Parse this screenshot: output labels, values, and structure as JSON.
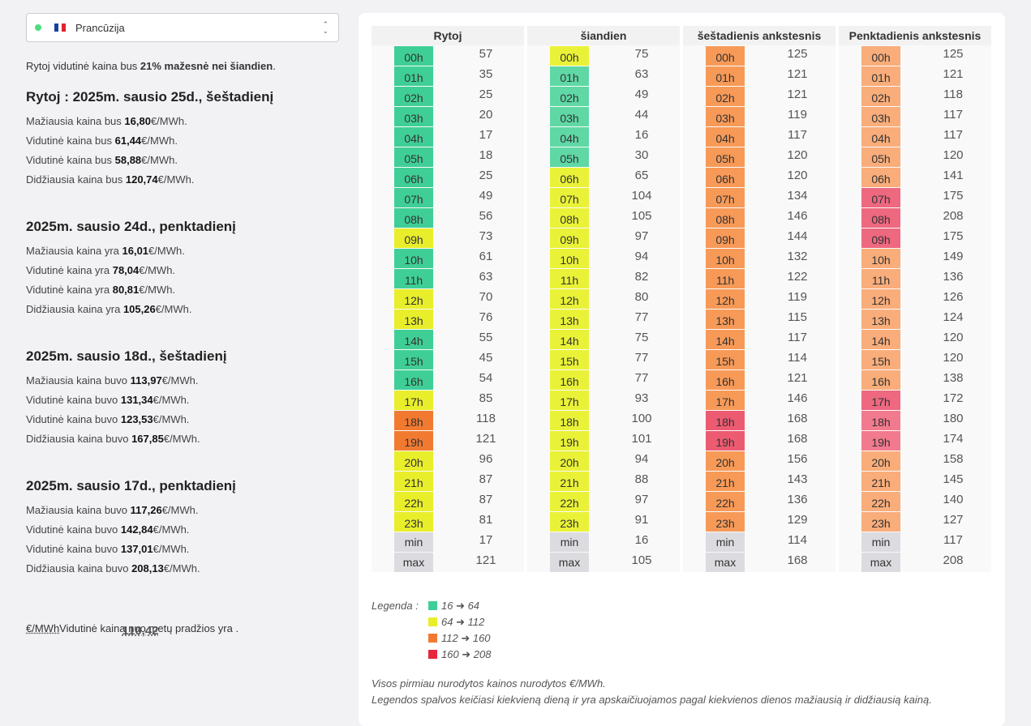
{
  "selector": {
    "country": "Prancūzija"
  },
  "summary": {
    "prefix": "Rytoj vidutinė kaina bus ",
    "bold": "21% mažesnė nei šiandien",
    "suffix": "."
  },
  "days": [
    {
      "title": "Rytoj : 2025m. sausio 25d., šeštadienį",
      "lines": [
        {
          "pre": "Mažiausia kaina bus ",
          "val": "16,80",
          "unit": "€/MWh."
        },
        {
          "pre": "Vidutinė kaina bus ",
          "val": "61,44",
          "unit": "€/MWh."
        },
        {
          "pre": "Vidutinė kaina bus ",
          "val": "58,88",
          "unit": "€/MWh."
        },
        {
          "pre": "Didžiausia kaina bus ",
          "val": "120,74",
          "unit": "€/MWh."
        }
      ]
    },
    {
      "title": "2025m. sausio 24d., penktadienį",
      "lines": [
        {
          "pre": "Mažiausia kaina yra ",
          "val": "16,01",
          "unit": "€/MWh."
        },
        {
          "pre": "Vidutinė kaina yra ",
          "val": "78,04",
          "unit": "€/MWh."
        },
        {
          "pre": "Vidutinė kaina yra ",
          "val": "80,81",
          "unit": "€/MWh."
        },
        {
          "pre": "Didžiausia kaina yra ",
          "val": "105,26",
          "unit": "€/MWh."
        }
      ]
    },
    {
      "title": "2025m. sausio 18d., šeštadienį",
      "lines": [
        {
          "pre": "Mažiausia kaina buvo ",
          "val": "113,97",
          "unit": "€/MWh."
        },
        {
          "pre": "Vidutinė kaina buvo ",
          "val": "131,34",
          "unit": "€/MWh."
        },
        {
          "pre": "Vidutinė kaina buvo ",
          "val": "123,53",
          "unit": "€/MWh."
        },
        {
          "pre": "Didžiausia kaina buvo ",
          "val": "167,85",
          "unit": "€/MWh."
        }
      ]
    },
    {
      "title": "2025m. sausio 17d., penktadienį",
      "lines": [
        {
          "pre": "Mažiausia kaina buvo ",
          "val": "117,26",
          "unit": "€/MWh."
        },
        {
          "pre": "Vidutinė kaina buvo ",
          "val": "142,84",
          "unit": "€/MWh."
        },
        {
          "pre": "Vidutinė kaina buvo ",
          "val": "137,01",
          "unit": "€/MWh."
        },
        {
          "pre": "Didžiausia kaina buvo ",
          "val": "208,13",
          "unit": "€/MWh."
        }
      ]
    }
  ],
  "ytd": {
    "val": "110,42",
    "unit": "€/MWh",
    "text": "Vidutinė kaina nuo metų pradžios yra ."
  },
  "hours": [
    "00h",
    "01h",
    "02h",
    "03h",
    "04h",
    "05h",
    "06h",
    "07h",
    "08h",
    "09h",
    "10h",
    "11h",
    "12h",
    "13h",
    "14h",
    "15h",
    "16h",
    "17h",
    "18h",
    "19h",
    "20h",
    "21h",
    "22h",
    "23h"
  ],
  "min_label": "min",
  "max_label": "max",
  "columns": [
    {
      "title": "Rytoj",
      "values": [
        57,
        35,
        25,
        20,
        17,
        18,
        25,
        49,
        56,
        73,
        61,
        63,
        70,
        76,
        55,
        45,
        54,
        85,
        118,
        121,
        96,
        87,
        87,
        81
      ],
      "colors": [
        "#3fcf96",
        "#3fcf96",
        "#3fcf96",
        "#3fcf96",
        "#3fcf96",
        "#3fcf96",
        "#3fcf96",
        "#3fcf96",
        "#3fcf96",
        "#e8ee2a",
        "#3fcf96",
        "#3fcf96",
        "#e8ee2a",
        "#e8ee2a",
        "#3fcf96",
        "#3fcf96",
        "#3fcf96",
        "#e8ee2a",
        "#f27a30",
        "#f27a30",
        "#e8ee2a",
        "#e8ee2a",
        "#e8ee2a",
        "#e8ee2a"
      ],
      "min": 17,
      "max": 121
    },
    {
      "title": "šiandien",
      "values": [
        75,
        63,
        49,
        44,
        16,
        30,
        65,
        104,
        105,
        97,
        94,
        82,
        80,
        77,
        75,
        77,
        77,
        93,
        100,
        101,
        94,
        88,
        97,
        91
      ],
      "colors": [
        "#eaf237",
        "#5fd8a6",
        "#5fd8a6",
        "#5fd8a6",
        "#5fd8a6",
        "#5fd8a6",
        "#eaf237",
        "#eaf237",
        "#eaf237",
        "#eaf237",
        "#eaf237",
        "#eaf237",
        "#eaf237",
        "#eaf237",
        "#eaf237",
        "#eaf237",
        "#eaf237",
        "#eaf237",
        "#eaf237",
        "#eaf237",
        "#eaf237",
        "#eaf237",
        "#eaf237",
        "#eaf237"
      ],
      "min": 16,
      "max": 105
    },
    {
      "title": "šeštadienis ankstesnis",
      "values": [
        125,
        121,
        121,
        119,
        117,
        120,
        120,
        134,
        146,
        144,
        132,
        122,
        119,
        115,
        117,
        114,
        121,
        146,
        168,
        168,
        156,
        143,
        136,
        129
      ],
      "colors": [
        "#f79a58",
        "#f79a58",
        "#f79a58",
        "#f79a58",
        "#f79a58",
        "#f79a58",
        "#f79a58",
        "#f79a58",
        "#f79a58",
        "#f79a58",
        "#f79a58",
        "#f79a58",
        "#f79a58",
        "#f79a58",
        "#f79a58",
        "#f79a58",
        "#f79a58",
        "#f79a58",
        "#ec5b72",
        "#ec5b72",
        "#f79a58",
        "#f79a58",
        "#f79a58",
        "#f79a58"
      ],
      "min": 114,
      "max": 168
    },
    {
      "title": "Penktadienis ankstesnis",
      "values": [
        125,
        121,
        118,
        117,
        117,
        120,
        141,
        175,
        208,
        175,
        149,
        136,
        126,
        124,
        120,
        120,
        138,
        172,
        180,
        174,
        158,
        145,
        140,
        127
      ],
      "colors": [
        "#f9ad7a",
        "#f9ad7a",
        "#f9ad7a",
        "#f9ad7a",
        "#f9ad7a",
        "#f9ad7a",
        "#f9ad7a",
        "#ee6880",
        "#ee6880",
        "#ee6880",
        "#f9ad7a",
        "#f9ad7a",
        "#f9ad7a",
        "#f9ad7a",
        "#f9ad7a",
        "#f9ad7a",
        "#f9ad7a",
        "#ee6880",
        "#f27a8e",
        "#f27a8e",
        "#f9ad7a",
        "#f9ad7a",
        "#f9ad7a",
        "#f9ad7a"
      ],
      "min": 117,
      "max": 208
    }
  ],
  "legend": {
    "label": "Legenda :",
    "items": [
      {
        "text": "16 ➜ 64",
        "color": "#3fcf96"
      },
      {
        "text": "64 ➜ 112",
        "color": "#e8ee2a"
      },
      {
        "text": "112 ➜ 160",
        "color": "#f27a30"
      },
      {
        "text": "160 ➜ 208",
        "color": "#e8263c"
      }
    ]
  },
  "notes": [
    "Visos pirmiau nurodytos kainos nurodytos €/MWh.",
    "Legendos spalvos keičiasi kiekvieną dieną ir yra apskaičiuojamos pagal kiekvienos dienos mažiausią ir didžiausią kainą."
  ]
}
